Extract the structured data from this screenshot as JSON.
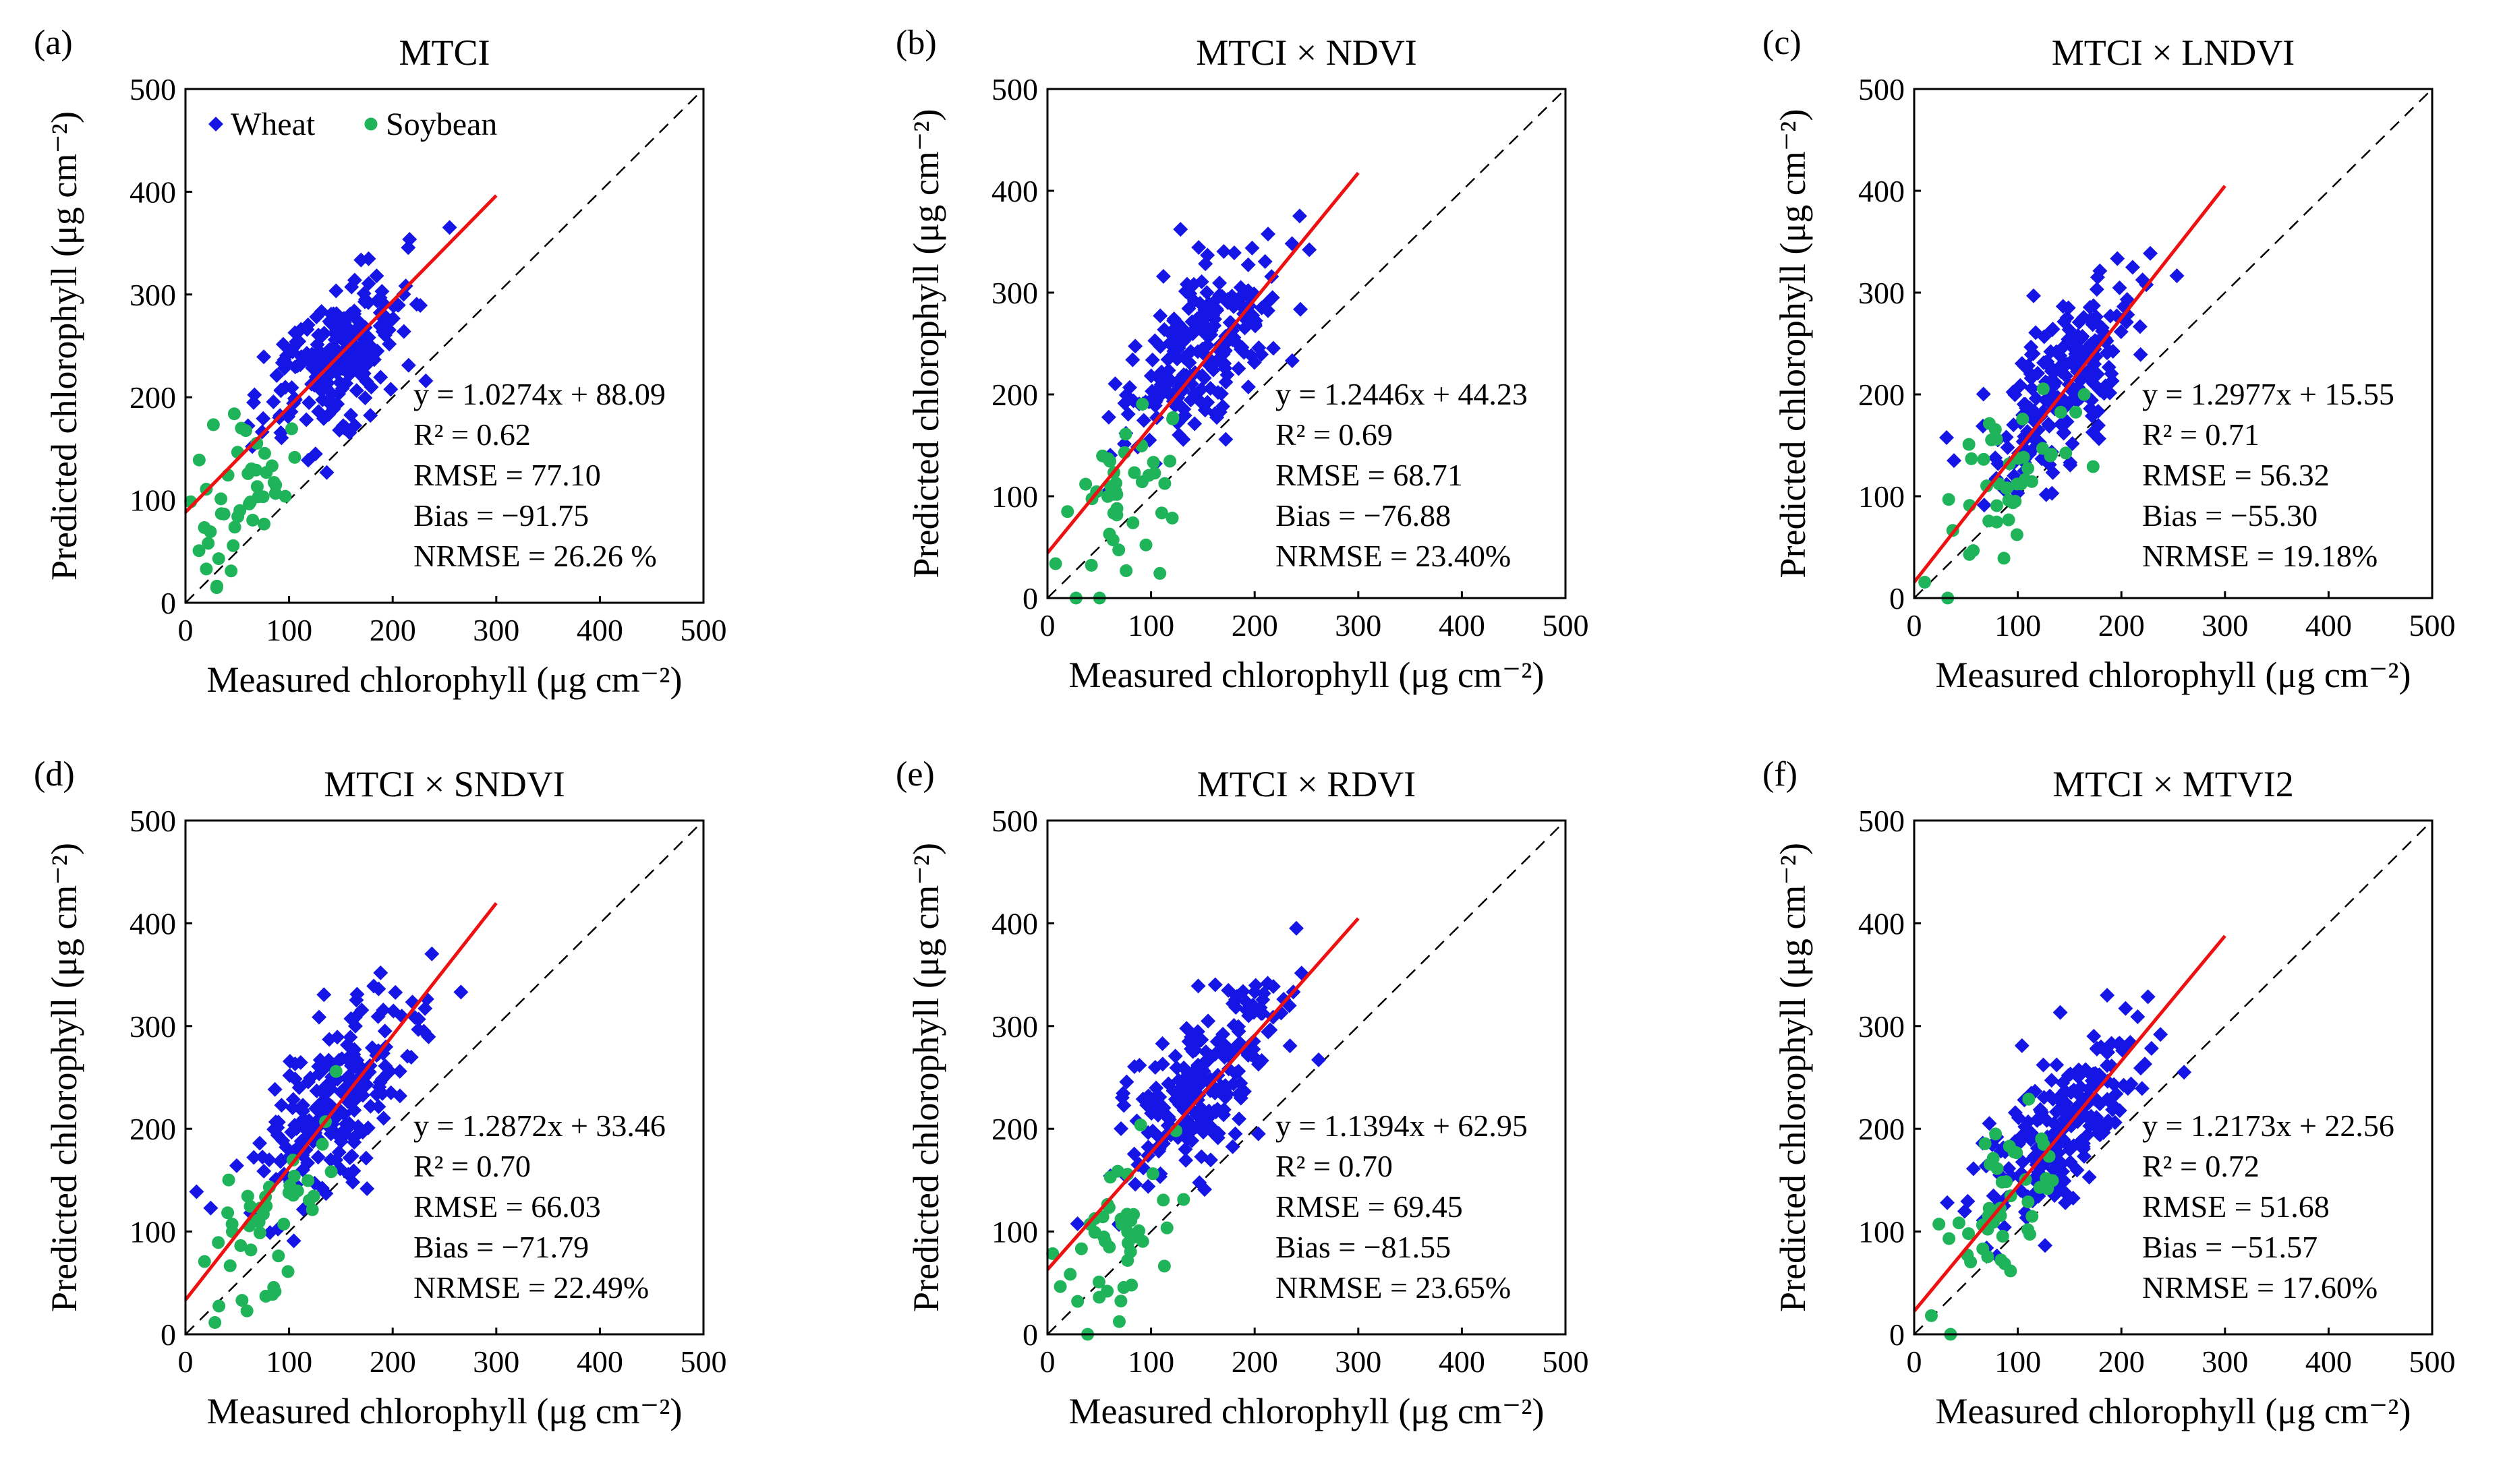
{
  "figure": {
    "x_axis_label": "Measured chlorophyll (μg cm⁻²)",
    "y_axis_label": "Predicted chlorophyll (μg cm⁻²)",
    "legend": [
      {
        "name": "Wheat",
        "color": "#1515e6",
        "marker": "diamond"
      },
      {
        "name": "Soybean",
        "color": "#1fb35a",
        "marker": "circle"
      }
    ],
    "fit_line_color": "#ee1111"
  },
  "chart_data": [
    {
      "panel": "(a)",
      "title": "MTCI",
      "type": "scatter",
      "xlim": [
        0,
        500
      ],
      "ylim": [
        0,
        500
      ],
      "xticks": [
        "0",
        "100",
        "200",
        "300",
        "400",
        "500"
      ],
      "yticks": [
        "0",
        "100",
        "200",
        "300",
        "400",
        "500"
      ],
      "fit": {
        "slope": 1.0274,
        "intercept": 88.09,
        "x_range": [
          0,
          300
        ]
      },
      "stats": [
        "y = 1.0274x + 88.09",
        "R² = 0.62",
        "RMSE = 77.10",
        "Bias = −91.75",
        "NRMSE = 26.26 %"
      ],
      "series": [
        {
          "name": "Wheat",
          "center": [
            140,
            235
          ],
          "spread": [
            50,
            55
          ]
        },
        {
          "name": "Soybean",
          "center": [
            60,
            110
          ],
          "spread": [
            35,
            60
          ]
        }
      ]
    },
    {
      "panel": "(b)",
      "title": "MTCI × NDVI",
      "type": "scatter",
      "xlim": [
        0,
        500
      ],
      "ylim": [
        0,
        500
      ],
      "xticks": [
        "0",
        "100",
        "200",
        "300",
        "400",
        "500"
      ],
      "yticks": [
        "0",
        "100",
        "200",
        "300",
        "400",
        "500"
      ],
      "fit": {
        "slope": 1.2446,
        "intercept": 44.23,
        "x_range": [
          0,
          300
        ]
      },
      "stats": [
        "y = 1.2446x + 44.23",
        "R² = 0.69",
        "RMSE = 68.71",
        "Bias = −76.88",
        "NRMSE = 23.40%"
      ],
      "series": [
        {
          "name": "Wheat",
          "center": [
            145,
            240
          ],
          "spread": [
            50,
            60
          ]
        },
        {
          "name": "Soybean",
          "center": [
            70,
            100
          ],
          "spread": [
            40,
            70
          ]
        }
      ]
    },
    {
      "panel": "(c)",
      "title": "MTCI × LNDVI",
      "type": "scatter",
      "xlim": [
        0,
        500
      ],
      "ylim": [
        0,
        500
      ],
      "xticks": [
        "0",
        "100",
        "200",
        "300",
        "400",
        "500"
      ],
      "yticks": [
        "0",
        "100",
        "200",
        "300",
        "400",
        "500"
      ],
      "fit": {
        "slope": 1.2977,
        "intercept": 15.55,
        "x_range": [
          0,
          300
        ]
      },
      "stats": [
        "y = 1.2977x + 15.55",
        "R² = 0.71",
        "RMSE = 56.32",
        "Bias = −55.30",
        "NRMSE = 19.18%"
      ],
      "series": [
        {
          "name": "Wheat",
          "center": [
            145,
            210
          ],
          "spread": [
            50,
            60
          ]
        },
        {
          "name": "Soybean",
          "center": [
            80,
            110
          ],
          "spread": [
            45,
            65
          ]
        }
      ]
    },
    {
      "panel": "(d)",
      "title": "MTCI × SNDVI",
      "type": "scatter",
      "xlim": [
        0,
        500
      ],
      "ylim": [
        0,
        500
      ],
      "xticks": [
        "0",
        "100",
        "200",
        "300",
        "400",
        "500"
      ],
      "yticks": [
        "0",
        "100",
        "200",
        "300",
        "400",
        "500"
      ],
      "fit": {
        "slope": 1.2872,
        "intercept": 33.46,
        "x_range": [
          0,
          300
        ]
      },
      "stats": [
        "y = 1.2872x + 33.46",
        "R² = 0.70",
        "RMSE = 66.03",
        "Bias = −71.79",
        "NRMSE = 22.49%"
      ],
      "series": [
        {
          "name": "Wheat",
          "center": [
            145,
            230
          ],
          "spread": [
            50,
            60
          ]
        },
        {
          "name": "Soybean",
          "center": [
            75,
            110
          ],
          "spread": [
            45,
            70
          ]
        }
      ]
    },
    {
      "panel": "(e)",
      "title": "MTCI × RDVI",
      "type": "scatter",
      "xlim": [
        0,
        500
      ],
      "ylim": [
        0,
        500
      ],
      "xticks": [
        "0",
        "100",
        "200",
        "300",
        "400",
        "500"
      ],
      "yticks": [
        "0",
        "100",
        "200",
        "300",
        "400",
        "500"
      ],
      "fit": {
        "slope": 1.1394,
        "intercept": 62.95,
        "x_range": [
          0,
          300
        ]
      },
      "stats": [
        "y = 1.1394x + 62.95",
        "R² = 0.70",
        "RMSE = 69.45",
        "Bias = −81.55",
        "NRMSE = 23.65%"
      ],
      "series": [
        {
          "name": "Wheat",
          "center": [
            145,
            240
          ],
          "spread": [
            50,
            55
          ]
        },
        {
          "name": "Soybean",
          "center": [
            65,
            100
          ],
          "spread": [
            40,
            70
          ]
        }
      ]
    },
    {
      "panel": "(f)",
      "title": "MTCI × MTVI2",
      "type": "scatter",
      "xlim": [
        0,
        500
      ],
      "ylim": [
        0,
        500
      ],
      "xticks": [
        "0",
        "100",
        "200",
        "300",
        "400",
        "500"
      ],
      "yticks": [
        "0",
        "100",
        "200",
        "300",
        "400",
        "500"
      ],
      "fit": {
        "slope": 1.2173,
        "intercept": 22.56,
        "x_range": [
          0,
          300
        ]
      },
      "stats": [
        "y = 1.2173x + 22.56",
        "R² = 0.72",
        "RMSE = 51.68",
        "Bias = −51.57",
        "NRMSE = 17.60%"
      ],
      "series": [
        {
          "name": "Wheat",
          "center": [
            145,
            205
          ],
          "spread": [
            50,
            55
          ]
        },
        {
          "name": "Soybean",
          "center": [
            85,
            120
          ],
          "spread": [
            50,
            70
          ]
        }
      ]
    }
  ]
}
